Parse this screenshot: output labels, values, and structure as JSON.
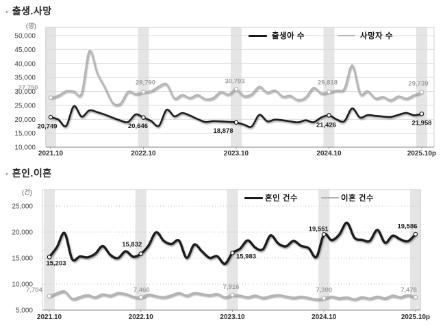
{
  "page": {
    "background": "#ffffff"
  },
  "sections": [
    {
      "bullet": "◦",
      "title": "출생.사망",
      "unit_label": "(명)"
    },
    {
      "bullet": "◦",
      "title": "혼인.이혼",
      "unit_label": "(건)"
    }
  ],
  "chart_data": [
    {
      "type": "line",
      "title": "출생.사망",
      "unit": "(명)",
      "x_frequency": "monthly",
      "x_start": "2021.10",
      "x_end": "2025.10p",
      "x_tick_labels": [
        "2021.10",
        "2022.10",
        "2023.10",
        "2024.10",
        "2025.10p"
      ],
      "ylim": [
        10000,
        50000
      ],
      "ytick_step": 5000,
      "ytick_labels": [
        "10,000",
        "15,000",
        "20,000",
        "25,000",
        "30,000",
        "35,000",
        "40,000",
        "45,000",
        "50,000"
      ],
      "grid_style": "solid",
      "band_color": "#e5e5e5",
      "legend_position": "top-center-inside",
      "series": [
        {
          "name": "출생아 수",
          "color": "#1a1a1a",
          "label_color": "#1c1c1c",
          "labeled_values": {
            "2021.10": 20749,
            "2022.10": 20646,
            "2023.10": 18878,
            "2024.10": 21426,
            "2025.10p": 21958
          },
          "values": [
            20749,
            19900,
            17600,
            24700,
            20950,
            23200,
            22600,
            21700,
            20600,
            19600,
            19000,
            21750,
            20646,
            19400,
            17650,
            23400,
            21050,
            22250,
            21350,
            20100,
            19050,
            19350,
            19250,
            19100,
            18878,
            18100,
            17400,
            21600,
            19300,
            19900,
            19650,
            19250,
            18900,
            19650,
            18950,
            20650,
            21426,
            19950,
            19350,
            23900,
            20650,
            21500,
            21250,
            21000,
            20850,
            21600,
            22300,
            21450,
            21958
          ]
        },
        {
          "name": "사망자 수",
          "color": "#b3b3b3",
          "label_color": "#a0a0a0",
          "labeled_values": {
            "2021.10": 27750,
            "2022.10": 29790,
            "2023.10": 30793,
            "2024.10": 29818,
            "2025.10p": 29739
          },
          "values": [
            27750,
            28500,
            30150,
            30000,
            29350,
            44500,
            36700,
            31500,
            26000,
            25600,
            29900,
            29100,
            29790,
            30150,
            31800,
            32600,
            27600,
            28800,
            27700,
            28750,
            27300,
            27650,
            29850,
            28950,
            30793,
            28350,
            29050,
            31700,
            29600,
            30400,
            28200,
            28450,
            26950,
            27950,
            31300,
            29350,
            29818,
            30350,
            31050,
            39400,
            29300,
            30150,
            27550,
            28050,
            26850,
            28250,
            27450,
            28700,
            29739
          ]
        }
      ]
    },
    {
      "type": "line",
      "title": "혼인.이혼",
      "unit": "(건)",
      "x_frequency": "monthly",
      "x_start": "2021.10",
      "x_end": "2025.10p",
      "x_tick_labels": [
        "2021.10",
        "2022.10",
        "2023.10",
        "2024.10",
        "2025.10p"
      ],
      "ylim": [
        5000,
        25000
      ],
      "ytick_step": 5000,
      "ytick_labels": [
        "5,000",
        "10,000",
        "15,000",
        "20,000",
        "25,000"
      ],
      "grid_style": "dotted",
      "band_color": "#e5e5e5",
      "legend_position": "top-center-inside",
      "series": [
        {
          "name": "혼인 건수",
          "color": "#1a1a1a",
          "label_color": "#1c1c1c",
          "labeled_values": {
            "2021.10": 15203,
            "2022.10": 15832,
            "2023.10": 15983,
            "2024.10": 19551,
            "2025.10p": 19586
          },
          "values": [
            15203,
            17100,
            19800,
            14800,
            15300,
            15150,
            15800,
            17300,
            15600,
            15000,
            16300,
            15250,
            15832,
            17400,
            19950,
            18300,
            17700,
            18350,
            15050,
            17600,
            16300,
            15050,
            15350,
            13900,
            15983,
            16800,
            18400,
            17000,
            16700,
            19350,
            17800,
            17250,
            18300,
            17350,
            16900,
            15200,
            19551,
            18450,
            19500,
            21800,
            18900,
            18500,
            18300,
            20400,
            17950,
            19300,
            18600,
            18250,
            19586
          ]
        },
        {
          "name": "이혼 건수",
          "color": "#b3b3b3",
          "label_color": "#a0a0a0",
          "labeled_values": {
            "2021.10": 7704,
            "2022.10": 7466,
            "2023.10": 7916,
            "2024.10": 7300,
            "2025.10p": 7478
          },
          "values": [
            7704,
            8250,
            8600,
            7200,
            7550,
            7900,
            7500,
            8050,
            7800,
            8300,
            8100,
            7600,
            7466,
            8000,
            7700,
            7500,
            7850,
            8300,
            7800,
            8300,
            8100,
            7900,
            8100,
            7500,
            7916,
            7800,
            7500,
            7800,
            7400,
            7700,
            7900,
            7650,
            7400,
            7600,
            7350,
            7100,
            7300,
            7600,
            7300,
            7450,
            7100,
            7500,
            7250,
            7600,
            7300,
            7800,
            7500,
            7900,
            7478
          ]
        }
      ]
    }
  ]
}
